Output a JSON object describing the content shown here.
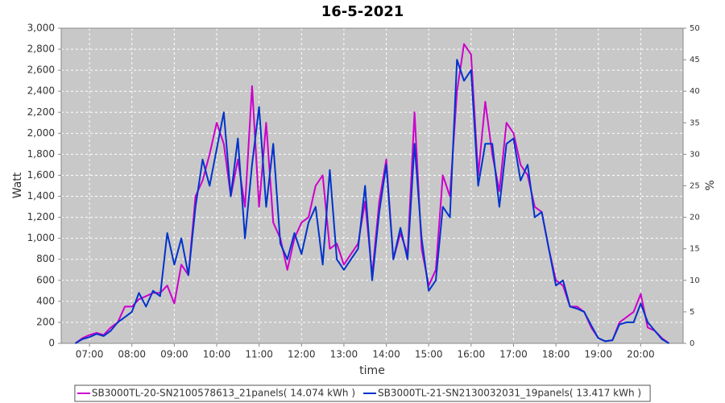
{
  "chart_data": {
    "type": "line",
    "title": "16-5-2021",
    "x_label": "time",
    "y_label": "Watt",
    "y2_label": "%",
    "x": [
      "06:40",
      "06:50",
      "07:00",
      "07:10",
      "07:20",
      "07:30",
      "07:40",
      "07:50",
      "08:00",
      "08:10",
      "08:20",
      "08:30",
      "08:40",
      "08:50",
      "09:00",
      "09:10",
      "09:20",
      "09:30",
      "09:40",
      "09:50",
      "10:00",
      "10:10",
      "10:20",
      "10:30",
      "10:40",
      "10:50",
      "11:00",
      "11:10",
      "11:20",
      "11:30",
      "11:40",
      "11:50",
      "12:00",
      "12:10",
      "12:20",
      "12:30",
      "12:40",
      "12:50",
      "13:00",
      "13:10",
      "13:20",
      "13:30",
      "13:40",
      "13:50",
      "14:00",
      "14:10",
      "14:20",
      "14:30",
      "14:40",
      "14:50",
      "15:00",
      "15:10",
      "15:20",
      "15:30",
      "15:40",
      "15:50",
      "16:00",
      "16:10",
      "16:20",
      "16:30",
      "16:40",
      "16:50",
      "17:00",
      "17:10",
      "17:20",
      "17:30",
      "17:40",
      "17:50",
      "18:00",
      "18:10",
      "18:20",
      "18:30",
      "18:40",
      "18:50",
      "19:00",
      "19:10",
      "19:20",
      "19:30",
      "19:40",
      "19:50",
      "20:00",
      "20:10",
      "20:20",
      "20:30",
      "20:40"
    ],
    "xlim": [
      "06:20",
      "21:00"
    ],
    "xticks": [
      "07:00",
      "08:00",
      "09:00",
      "10:00",
      "11:00",
      "12:00",
      "13:00",
      "14:00",
      "15:00",
      "16:00",
      "17:00",
      "18:00",
      "19:00",
      "20:00"
    ],
    "ylim": [
      0,
      3000
    ],
    "yticks": [
      0,
      200,
      400,
      600,
      800,
      {
        "value": 1000,
        "label": "1,000"
      },
      {
        "value": 1200,
        "label": "1,200"
      },
      {
        "value": 1400,
        "label": "1,400"
      },
      {
        "value": 1600,
        "label": "1,600"
      },
      {
        "value": 1800,
        "label": "1,800"
      },
      {
        "value": 2000,
        "label": "2,000"
      },
      {
        "value": 2200,
        "label": "2,200"
      },
      {
        "value": 2400,
        "label": "2,400"
      },
      {
        "value": 2600,
        "label": "2,600"
      },
      {
        "value": 2800,
        "label": "2,800"
      },
      {
        "value": 3000,
        "label": "3,000"
      }
    ],
    "y2lim": [
      0,
      50
    ],
    "y2ticks": [
      0,
      5,
      10,
      15,
      20,
      25,
      30,
      35,
      40,
      45,
      50
    ],
    "grid": true,
    "series": [
      {
        "name": "SB3000TL-20-SN2100578613_21panels( 14.074 kWh )",
        "color": "#cc00cc",
        "values": [
          0,
          50,
          80,
          100,
          80,
          150,
          200,
          350,
          350,
          420,
          450,
          480,
          480,
          550,
          380,
          750,
          650,
          1400,
          1550,
          1800,
          2100,
          1900,
          1400,
          1750,
          1300,
          2450,
          1300,
          2100,
          1150,
          1000,
          700,
          1000,
          1150,
          1200,
          1500,
          1600,
          900,
          950,
          750,
          850,
          950,
          1350,
          650,
          1350,
          1750,
          800,
          1050,
          850,
          2200,
          900,
          550,
          700,
          1600,
          1400,
          2400,
          2850,
          2750,
          1600,
          2300,
          1800,
          1450,
          2100,
          2000,
          1700,
          1600,
          1300,
          1250,
          900,
          600,
          550,
          350,
          350,
          300,
          150,
          50,
          20,
          30,
          200,
          250,
          300,
          470,
          150,
          120,
          50,
          0
        ]
      },
      {
        "name": "SB3000TL-21-SN2130032031_19panels( 13.417 kWh )",
        "color": "#0033cc",
        "values": [
          0,
          40,
          60,
          90,
          70,
          120,
          200,
          250,
          300,
          480,
          350,
          500,
          450,
          1050,
          750,
          1000,
          650,
          1300,
          1750,
          1500,
          1850,
          2200,
          1400,
          1950,
          1000,
          1700,
          2250,
          1300,
          1900,
          950,
          800,
          1050,
          850,
          1150,
          1300,
          750,
          1650,
          800,
          700,
          800,
          900,
          1500,
          600,
          1250,
          1700,
          800,
          1100,
          800,
          1900,
          1000,
          500,
          600,
          1300,
          1200,
          2700,
          2500,
          2600,
          1500,
          1900,
          1900,
          1300,
          1900,
          1950,
          1550,
          1700,
          1200,
          1250,
          900,
          550,
          600,
          350,
          330,
          300,
          170,
          50,
          20,
          30,
          180,
          200,
          200,
          380,
          200,
          120,
          40,
          0
        ]
      }
    ]
  }
}
